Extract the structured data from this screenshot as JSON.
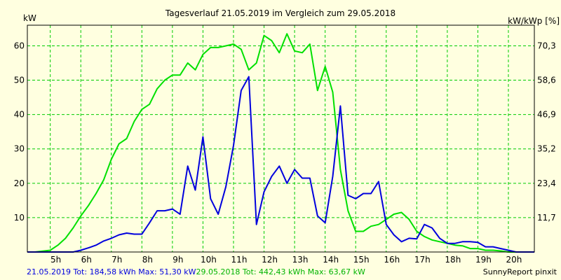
{
  "chart_data": {
    "type": "line",
    "title": "Tagesverlauf 21.05.2019 im Vergleich zum 29.05.2018",
    "ylabel_left": "kW",
    "ylabel_right": "kW/kWp [%]",
    "ylim": [
      0,
      66
    ],
    "yticks_left": [
      10,
      20,
      30,
      40,
      50,
      60
    ],
    "yticks_right": [
      "11,7",
      "23,4",
      "35,2",
      "46,9",
      "58,6",
      "70,3"
    ],
    "xlim": [
      4.25,
      20.85
    ],
    "xticks": [
      {
        "value": 5,
        "label": "5h"
      },
      {
        "value": 6,
        "label": "6h"
      },
      {
        "value": 7,
        "label": "7h"
      },
      {
        "value": 8,
        "label": "8h"
      },
      {
        "value": 9,
        "label": "9h"
      },
      {
        "value": 10,
        "label": "10h"
      },
      {
        "value": 11,
        "label": "11h"
      },
      {
        "value": 12,
        "label": "12h"
      },
      {
        "value": 13,
        "label": "13h"
      },
      {
        "value": 14,
        "label": "14h"
      },
      {
        "value": 15,
        "label": "15h"
      },
      {
        "value": 16,
        "label": "16h"
      },
      {
        "value": 17,
        "label": "17h"
      },
      {
        "value": 18,
        "label": "18h"
      },
      {
        "value": 19,
        "label": "19h"
      },
      {
        "value": 20,
        "label": "20h"
      }
    ],
    "grid": true,
    "colors": {
      "blue": "#0000dd",
      "green": "#00e000",
      "grid": "#00cc00",
      "background": "#ffffe0"
    },
    "series": [
      {
        "name": "21.05.2019",
        "color": "#0000dd",
        "x": [
          4.25,
          5,
          5.75,
          6,
          6.25,
          6.5,
          6.75,
          7,
          7.25,
          7.5,
          7.75,
          8,
          8.25,
          8.5,
          8.75,
          9,
          9.25,
          9.5,
          9.75,
          10,
          10.25,
          10.5,
          10.75,
          11,
          11.25,
          11.5,
          11.75,
          12,
          12.25,
          12.5,
          12.75,
          13,
          13.25,
          13.5,
          13.75,
          14,
          14.25,
          14.5,
          14.75,
          15,
          15.25,
          15.5,
          15.75,
          16,
          16.25,
          16.5,
          16.75,
          17,
          17.25,
          17.5,
          17.75,
          18,
          18.25,
          18.5,
          18.75,
          19,
          19.25,
          19.5,
          19.75,
          20,
          20.25,
          20.5,
          20.85
        ],
        "y": [
          0,
          0,
          0,
          0.5,
          1.2,
          2,
          3.2,
          4,
          5,
          5.5,
          5.2,
          5.2,
          8.5,
          12,
          12,
          12.5,
          11,
          25,
          18,
          33.5,
          15.5,
          11,
          19,
          31,
          47,
          51,
          8,
          17.5,
          22,
          25,
          20,
          24,
          21.5,
          21.5,
          10.5,
          8.5,
          22,
          42.5,
          16.5,
          15.5,
          17,
          17,
          20.5,
          8,
          5,
          3,
          4,
          3.8,
          8,
          7,
          4,
          2.5,
          2.5,
          3,
          3,
          2.8,
          1.5,
          1.5,
          1,
          0.5,
          0,
          0,
          0
        ]
      },
      {
        "name": "29.05.2018",
        "color": "#00e000",
        "x": [
          4.25,
          4.5,
          5,
          5.25,
          5.5,
          5.75,
          6,
          6.25,
          6.5,
          6.75,
          7,
          7.25,
          7.5,
          7.75,
          8,
          8.25,
          8.5,
          8.75,
          9,
          9.25,
          9.5,
          9.75,
          10,
          10.25,
          10.5,
          10.75,
          11,
          11.25,
          11.5,
          11.75,
          12,
          12.25,
          12.5,
          12.75,
          13,
          13.25,
          13.5,
          13.75,
          14,
          14.25,
          14.5,
          14.75,
          15,
          15.25,
          15.5,
          15.75,
          16,
          16.25,
          16.5,
          16.75,
          17,
          17.25,
          17.5,
          17.75,
          18,
          18.25,
          18.5,
          18.75,
          19,
          19.25,
          19.5,
          19.75,
          20,
          20.25,
          20.5,
          20.85
        ],
        "y": [
          0,
          0,
          0.5,
          2,
          4,
          7,
          10.5,
          13.5,
          17,
          21,
          27,
          31.5,
          33,
          38,
          41.5,
          43,
          47.5,
          50,
          51.5,
          51.5,
          55,
          53,
          57.5,
          59.5,
          59.5,
          60,
          60.5,
          59,
          53,
          55,
          63,
          61.5,
          58,
          63.5,
          58.5,
          58,
          60.5,
          47,
          54,
          46.5,
          24,
          12,
          6,
          6,
          7.5,
          8,
          9.5,
          11,
          11.5,
          9.5,
          6,
          4.5,
          3.5,
          3,
          2.5,
          2,
          1.8,
          1,
          1,
          0.5,
          0.5,
          0.3,
          0,
          0,
          0,
          0
        ]
      }
    ]
  },
  "footer": {
    "series1_text": "21.05.2019 Tot: 184,58 kWh Max: 51,30 kW",
    "series2_text": "29.05.2018 Tot: 442,43 kWh Max: 63,67 kW",
    "credit": "SunnyReport pinxit"
  }
}
